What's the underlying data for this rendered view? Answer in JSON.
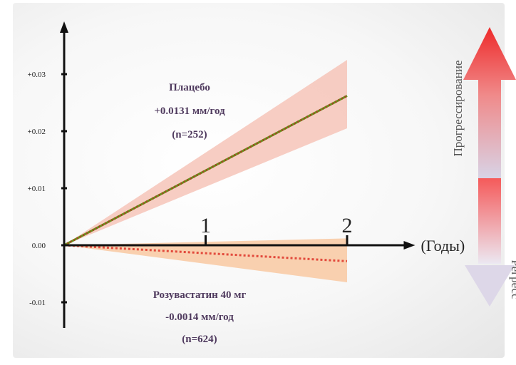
{
  "chart_data": {
    "type": "line",
    "x": [
      0,
      2
    ],
    "xlim": [
      0,
      2.35
    ],
    "ylim": [
      -0.012,
      0.038
    ],
    "xticks": [
      "1",
      "2"
    ],
    "xtick_values": [
      1,
      2
    ],
    "xlabel": "(Годы)",
    "yticks": [
      "+0.03",
      "+0.02",
      "+0.01",
      "0.00",
      "-0.01"
    ],
    "ytick_values": [
      0.03,
      0.02,
      0.01,
      0.0,
      -0.01
    ],
    "series": [
      {
        "key": "placebo",
        "values": [
          0,
          0.0262
        ],
        "band_upper": [
          0,
          0.0325
        ],
        "band_lower": [
          0,
          0.0205
        ],
        "line_colors": [
          "#6a8f1e",
          "#a04a1e"
        ],
        "band_color": "#f6c4b8"
      },
      {
        "key": "rosuvastatin",
        "values": [
          0,
          -0.0028
        ],
        "band_upper": [
          0,
          0.0012
        ],
        "band_lower": [
          0,
          -0.0065
        ],
        "line_colors": [
          "#e24a3c",
          "#e24a3c"
        ],
        "band_color": "#f8cba6"
      }
    ],
    "annotations": {
      "placebo": [
        "Плацебо",
        "+0.0131 мм/год",
        "(n=252)"
      ],
      "rosuvastatin": [
        "Розувастатин 40 мг",
        "-0.0014 мм/год",
        "(n=624)"
      ]
    },
    "annotation_color": "#4f3a5e",
    "side_arrow": {
      "up_label": "Прогрессирование",
      "down_label": "Регресс",
      "top_color": "#ee2a2a",
      "bottom_color": "#d8d3e6"
    }
  }
}
